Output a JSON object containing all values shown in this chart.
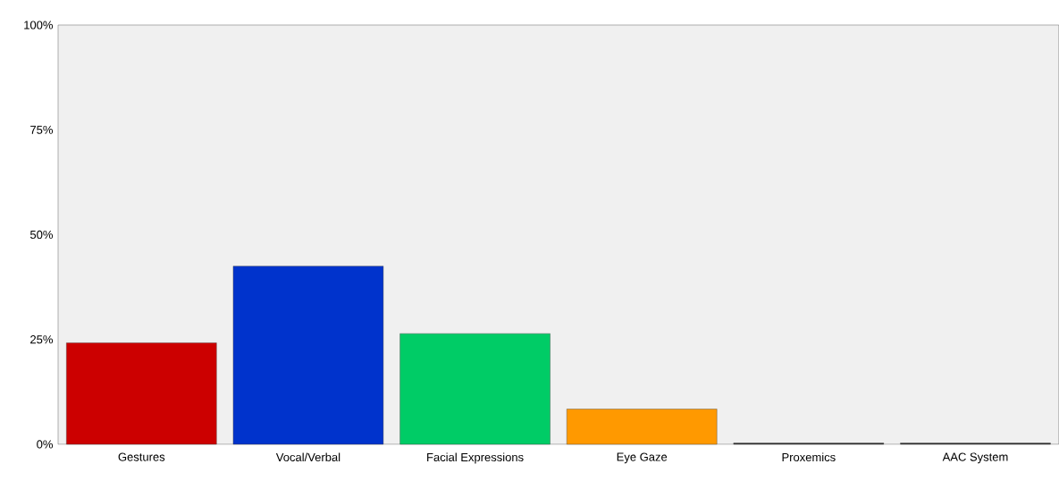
{
  "chart_data": {
    "type": "bar",
    "categories": [
      "Gestures",
      "Vocal/Verbal",
      "Facial Expressions",
      "Eye Gaze",
      "Proxemics",
      "AAC System"
    ],
    "values": [
      24.2,
      42.5,
      26.4,
      8.4,
      0.3,
      0.3
    ],
    "colors": [
      "#cc0000",
      "#0033cc",
      "#00cc66",
      "#ff9900",
      "#333333",
      "#333333"
    ],
    "ylim": [
      0,
      100
    ],
    "yticks": [
      {
        "value": 0,
        "label": "0%"
      },
      {
        "value": 25,
        "label": "25%"
      },
      {
        "value": 50,
        "label": "50%"
      },
      {
        "value": 75,
        "label": "75%"
      },
      {
        "value": 100,
        "label": "100%"
      }
    ],
    "grid": false
  }
}
